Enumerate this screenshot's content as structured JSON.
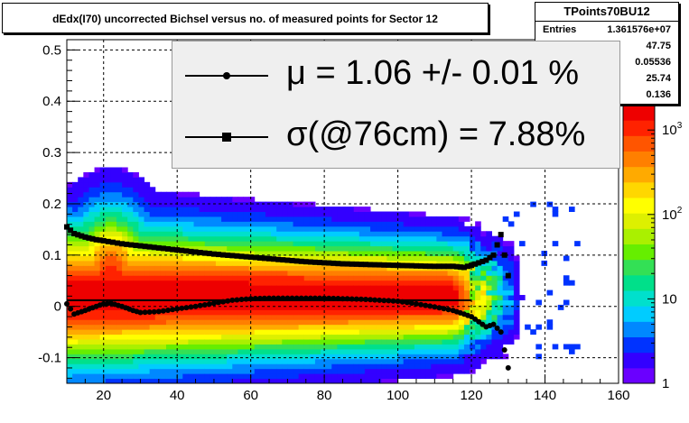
{
  "title": "dEdx(I70) uncorrected Bichsel versus no. of measured points for Sector 12",
  "stats": {
    "name": "TPoints70BU12",
    "entries_label": "Entries",
    "entries_value": "1.361576e+07",
    "row2": "47.75",
    "row3": "0.05536",
    "row4": "25.74",
    "row5": "0.136"
  },
  "legend": {
    "mu_text": "μ  =  1.06 +/-  0.01 %",
    "sigma_text": "σ(@76cm) =  7.88%"
  },
  "palette_labels": [
    "1",
    "10",
    "10",
    "10"
  ],
  "palette_exponents": [
    "",
    "",
    "2",
    "3"
  ],
  "chart_data": {
    "type": "heatmap",
    "xlim": [
      10,
      160
    ],
    "ylim": [
      -0.15,
      0.52
    ],
    "x_ticks": [
      20,
      40,
      60,
      80,
      100,
      120,
      140,
      160
    ],
    "y_ticks": [
      -0.1,
      0,
      0.1,
      0.2,
      0.3,
      0.4,
      0.5
    ],
    "y_tick_labels": [
      "-0.1",
      "0",
      "0.1",
      "0.2",
      "0.3",
      "0.4",
      "0.5"
    ],
    "z_scale": "log",
    "zlim": [
      1,
      2000
    ],
    "grid": true,
    "colors": [
      "#6a00ff",
      "#3300ff",
      "#0033ff",
      "#0088ff",
      "#00ccff",
      "#00e0cc",
      "#00e08a",
      "#33e055",
      "#66ee00",
      "#aaf000",
      "#ddf000",
      "#ffff00",
      "#ffd700",
      "#ffaa00",
      "#ff7f00",
      "#ff5500",
      "#ff2200",
      "#ee0000"
    ],
    "mu_series": {
      "marker": "circle",
      "x": [
        10,
        12,
        15,
        18,
        20,
        22,
        25,
        28,
        30,
        35,
        40,
        45,
        50,
        55,
        60,
        65,
        70,
        75,
        80,
        85,
        90,
        95,
        100,
        105,
        110,
        115,
        118,
        120,
        122,
        124,
        126,
        128,
        130
      ],
      "y": [
        0.005,
        -0.015,
        -0.008,
        0.0,
        0.005,
        0.006,
        0.0,
        -0.008,
        -0.012,
        -0.01,
        -0.005,
        0.0,
        0.006,
        0.012,
        0.015,
        0.016,
        0.016,
        0.016,
        0.016,
        0.015,
        0.014,
        0.012,
        0.01,
        0.005,
        -0.001,
        -0.008,
        -0.015,
        -0.02,
        -0.03,
        -0.04,
        -0.035,
        -0.05,
        -0.12
      ]
    },
    "sigma_series": {
      "marker": "square",
      "x": [
        10,
        12,
        15,
        18,
        20,
        25,
        30,
        35,
        40,
        45,
        50,
        55,
        60,
        65,
        70,
        75,
        80,
        85,
        90,
        95,
        100,
        105,
        110,
        115,
        118,
        120,
        122,
        124,
        126,
        128,
        130
      ],
      "y": [
        0.155,
        0.142,
        0.135,
        0.13,
        0.128,
        0.122,
        0.118,
        0.114,
        0.11,
        0.106,
        0.102,
        0.099,
        0.096,
        0.093,
        0.09,
        0.087,
        0.085,
        0.083,
        0.082,
        0.081,
        0.08,
        0.079,
        0.078,
        0.078,
        0.076,
        0.08,
        0.085,
        0.09,
        0.1,
        0.14,
        0.06
      ]
    },
    "fit_line": {
      "x": [
        10,
        120
      ],
      "y": [
        0.012,
        0.012
      ]
    }
  }
}
